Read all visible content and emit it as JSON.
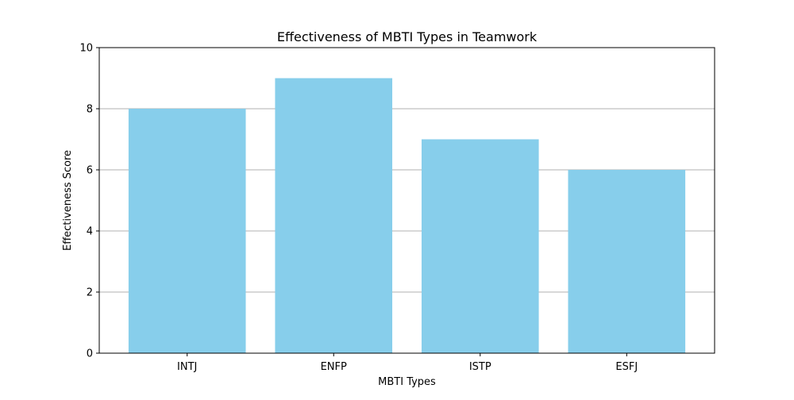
{
  "chart_data": {
    "type": "bar",
    "title": "Effectiveness of MBTI Types in Teamwork",
    "xlabel": "MBTI Types",
    "ylabel": "Effectiveness Score",
    "categories": [
      "INTJ",
      "ENFP",
      "ISTP",
      "ESFJ"
    ],
    "values": [
      8,
      9,
      7,
      6
    ],
    "ylim": [
      0,
      10
    ],
    "yticks": [
      0,
      2,
      4,
      6,
      8,
      10
    ],
    "grid": "y-axis only",
    "legend": "none",
    "bar_color": "#87ceeb",
    "grid_color": "#b0b0b0"
  }
}
